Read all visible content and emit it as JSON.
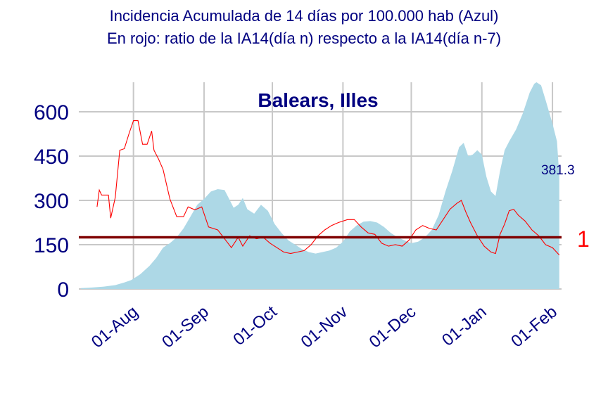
{
  "chart_data": {
    "type": "area",
    "title": "Incidencia Acumulada de 14 días por 100.000 hab (Azul)",
    "subtitle": "En rojo: ratio de la IA14(día n) respecto a la IA14(día n-7)",
    "panel_title": "Balears, Illes",
    "ylim": [
      0,
      700
    ],
    "yticks": [
      "0",
      "150",
      "300",
      "450",
      "600"
    ],
    "ytick_values": [
      0,
      150,
      300,
      450,
      600
    ],
    "xlim": [
      "2020-07-08",
      "2021-02-05"
    ],
    "xticks": [
      {
        "date": "2020-08-01",
        "label": "01-Aug"
      },
      {
        "date": "2020-09-01",
        "label": "01-Sep"
      },
      {
        "date": "2020-10-01",
        "label": "01-Oct"
      },
      {
        "date": "2020-11-01",
        "label": "01-Nov"
      },
      {
        "date": "2020-12-01",
        "label": "01-Dec"
      },
      {
        "date": "2021-01-01",
        "label": "01-Jan"
      },
      {
        "date": "2021-02-01",
        "label": "01-Feb"
      }
    ],
    "grid": true,
    "last_value_label": "381.3",
    "reference_line": {
      "value": 175,
      "label": "1",
      "color": "#800000"
    },
    "series": [
      {
        "type": "area",
        "color": "#add8e6",
        "points": [
          [
            "2020-07-09",
            3
          ],
          [
            "2020-07-14",
            5
          ],
          [
            "2020-07-19",
            8
          ],
          [
            "2020-07-24",
            13
          ],
          [
            "2020-07-28",
            22
          ],
          [
            "2020-07-31",
            30
          ],
          [
            "2020-08-04",
            50
          ],
          [
            "2020-08-08",
            78
          ],
          [
            "2020-08-11",
            105
          ],
          [
            "2020-08-14",
            140
          ],
          [
            "2020-08-17",
            155
          ],
          [
            "2020-08-20",
            175
          ],
          [
            "2020-08-23",
            205
          ],
          [
            "2020-08-26",
            245
          ],
          [
            "2020-08-29",
            285
          ],
          [
            "2020-09-01",
            305
          ],
          [
            "2020-09-04",
            330
          ],
          [
            "2020-09-07",
            338
          ],
          [
            "2020-09-10",
            335
          ],
          [
            "2020-09-12",
            305
          ],
          [
            "2020-09-14",
            275
          ],
          [
            "2020-09-16",
            285
          ],
          [
            "2020-09-18",
            308
          ],
          [
            "2020-09-20",
            270
          ],
          [
            "2020-09-23",
            255
          ],
          [
            "2020-09-26",
            285
          ],
          [
            "2020-09-29",
            265
          ],
          [
            "2020-10-02",
            220
          ],
          [
            "2020-10-05",
            190
          ],
          [
            "2020-10-08",
            165
          ],
          [
            "2020-10-11",
            150
          ],
          [
            "2020-10-14",
            135
          ],
          [
            "2020-10-17",
            125
          ],
          [
            "2020-10-20",
            120
          ],
          [
            "2020-10-23",
            125
          ],
          [
            "2020-10-26",
            130
          ],
          [
            "2020-10-29",
            140
          ],
          [
            "2020-11-01",
            160
          ],
          [
            "2020-11-04",
            195
          ],
          [
            "2020-11-07",
            215
          ],
          [
            "2020-11-10",
            228
          ],
          [
            "2020-11-13",
            230
          ],
          [
            "2020-11-16",
            225
          ],
          [
            "2020-11-19",
            210
          ],
          [
            "2020-11-22",
            190
          ],
          [
            "2020-11-25",
            175
          ],
          [
            "2020-11-28",
            165
          ],
          [
            "2020-12-01",
            155
          ],
          [
            "2020-12-04",
            160
          ],
          [
            "2020-12-07",
            175
          ],
          [
            "2020-12-10",
            200
          ],
          [
            "2020-12-13",
            250
          ],
          [
            "2020-12-16",
            330
          ],
          [
            "2020-12-19",
            400
          ],
          [
            "2020-12-22",
            480
          ],
          [
            "2020-12-24",
            495
          ],
          [
            "2020-12-26",
            450
          ],
          [
            "2020-12-28",
            455
          ],
          [
            "2020-12-30",
            470
          ],
          [
            "2021-01-01",
            455
          ],
          [
            "2021-01-03",
            380
          ],
          [
            "2021-01-05",
            330
          ],
          [
            "2021-01-07",
            315
          ],
          [
            "2021-01-09",
            400
          ],
          [
            "2021-01-11",
            470
          ],
          [
            "2021-01-13",
            500
          ],
          [
            "2021-01-16",
            540
          ],
          [
            "2021-01-19",
            595
          ],
          [
            "2021-01-22",
            665
          ],
          [
            "2021-01-24",
            695
          ],
          [
            "2021-01-25",
            700
          ],
          [
            "2021-01-27",
            690
          ],
          [
            "2021-01-29",
            640
          ],
          [
            "2021-02-01",
            560
          ],
          [
            "2021-02-03",
            500
          ],
          [
            "2021-02-04",
            381.3
          ]
        ]
      },
      {
        "type": "line",
        "color": "#ff0000",
        "points": [
          [
            "2020-07-16",
            278
          ],
          [
            "2020-07-17",
            335
          ],
          [
            "2020-07-18",
            318
          ],
          [
            "2020-07-21",
            318
          ],
          [
            "2020-07-22",
            240
          ],
          [
            "2020-07-24",
            310
          ],
          [
            "2020-07-26",
            470
          ],
          [
            "2020-07-28",
            475
          ],
          [
            "2020-07-30",
            525
          ],
          [
            "2020-08-01",
            570
          ],
          [
            "2020-08-03",
            570
          ],
          [
            "2020-08-05",
            490
          ],
          [
            "2020-08-07",
            490
          ],
          [
            "2020-08-09",
            535
          ],
          [
            "2020-08-10",
            470
          ],
          [
            "2020-08-12",
            440
          ],
          [
            "2020-08-14",
            405
          ],
          [
            "2020-08-17",
            305
          ],
          [
            "2020-08-20",
            245
          ],
          [
            "2020-08-23",
            245
          ],
          [
            "2020-08-25",
            278
          ],
          [
            "2020-08-28",
            268
          ],
          [
            "2020-08-31",
            278
          ],
          [
            "2020-09-03",
            210
          ],
          [
            "2020-09-07",
            200
          ],
          [
            "2020-09-10",
            170
          ],
          [
            "2020-09-13",
            140
          ],
          [
            "2020-09-16",
            175
          ],
          [
            "2020-09-18",
            145
          ],
          [
            "2020-09-21",
            180
          ],
          [
            "2020-09-24",
            170
          ],
          [
            "2020-09-27",
            175
          ],
          [
            "2020-09-30",
            155
          ],
          [
            "2020-10-03",
            140
          ],
          [
            "2020-10-06",
            125
          ],
          [
            "2020-10-09",
            120
          ],
          [
            "2020-10-12",
            125
          ],
          [
            "2020-10-15",
            130
          ],
          [
            "2020-10-18",
            150
          ],
          [
            "2020-10-21",
            180
          ],
          [
            "2020-10-24",
            200
          ],
          [
            "2020-10-27",
            215
          ],
          [
            "2020-10-30",
            225
          ],
          [
            "2020-11-03",
            235
          ],
          [
            "2020-11-06",
            235
          ],
          [
            "2020-11-09",
            210
          ],
          [
            "2020-11-12",
            190
          ],
          [
            "2020-11-15",
            185
          ],
          [
            "2020-11-18",
            155
          ],
          [
            "2020-11-21",
            145
          ],
          [
            "2020-11-24",
            150
          ],
          [
            "2020-11-27",
            145
          ],
          [
            "2020-11-30",
            165
          ],
          [
            "2020-12-03",
            200
          ],
          [
            "2020-12-06",
            215
          ],
          [
            "2020-12-09",
            205
          ],
          [
            "2020-12-12",
            200
          ],
          [
            "2020-12-15",
            235
          ],
          [
            "2020-12-18",
            270
          ],
          [
            "2020-12-21",
            290
          ],
          [
            "2020-12-23",
            300
          ],
          [
            "2020-12-25",
            260
          ],
          [
            "2020-12-27",
            225
          ],
          [
            "2020-12-30",
            180
          ],
          [
            "2021-01-02",
            145
          ],
          [
            "2021-01-05",
            125
          ],
          [
            "2021-01-07",
            120
          ],
          [
            "2021-01-09",
            185
          ],
          [
            "2021-01-11",
            220
          ],
          [
            "2021-01-13",
            265
          ],
          [
            "2021-01-15",
            270
          ],
          [
            "2021-01-17",
            250
          ],
          [
            "2021-01-20",
            230
          ],
          [
            "2021-01-23",
            200
          ],
          [
            "2021-01-26",
            180
          ],
          [
            "2021-01-29",
            150
          ],
          [
            "2021-02-01",
            140
          ],
          [
            "2021-02-04",
            115
          ]
        ]
      }
    ]
  }
}
